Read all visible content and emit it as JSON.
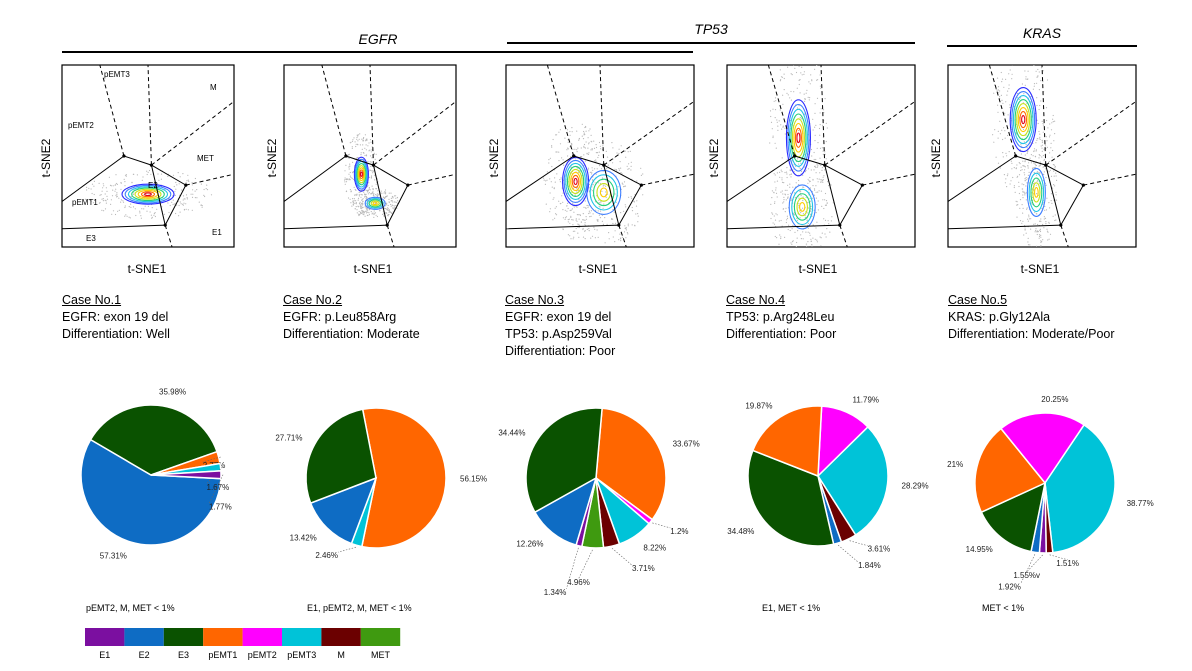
{
  "gene_headers": [
    {
      "label": "EGFR"
    },
    {
      "label": "TP53"
    },
    {
      "label": "KRAS"
    }
  ],
  "tsne_panels": [
    {
      "xlabel": "t-SNE1",
      "ylabel": "t-SNE2",
      "region_labels": [
        "pEMT3",
        "M",
        "pEMT2",
        "MET",
        "E2",
        "pEMT1",
        "E3",
        "E1"
      ]
    },
    {
      "xlabel": "t-SNE1",
      "ylabel": "t-SNE2"
    },
    {
      "xlabel": "t-SNE1",
      "ylabel": "t-SNE2"
    },
    {
      "xlabel": "t-SNE1",
      "ylabel": "t-SNE2"
    },
    {
      "xlabel": "t-SNE1",
      "ylabel": "t-SNE2"
    }
  ],
  "cases": [
    {
      "title": "Case No.1",
      "lines": [
        "EGFR: exon 19 del",
        "Differentiation: Well"
      ]
    },
    {
      "title": "Case No.2",
      "lines": [
        "EGFR: p.Leu858Arg",
        "Differentiation: Moderate"
      ]
    },
    {
      "title": "Case No.3",
      "lines": [
        "EGFR: exon 19 del",
        "TP53: p.Asp259Val",
        "Differentiation: Poor"
      ]
    },
    {
      "title": "Case No.4",
      "lines": [
        "TP53: p.Arg248Leu",
        "Differentiation: Poor"
      ]
    },
    {
      "title": "Case No.5",
      "lines": [
        "KRAS: p.Gly12Ala",
        "Differentiation: Moderate/Poor"
      ]
    }
  ],
  "colors": {
    "E1": "#7b0fa0",
    "E2": "#0e6cc4",
    "E3": "#0a5200",
    "pEMT1": "#ff6600",
    "pEMT2": "#ff00ff",
    "pEMT3": "#00c3d8",
    "M": "#6b0000",
    "MET": "#3f9a10"
  },
  "chart_data": [
    {
      "type": "pie",
      "title": "Case No.1",
      "slices": [
        {
          "category": "E2",
          "value": 57.31,
          "label": "57.31%"
        },
        {
          "category": "E3",
          "value": 35.98,
          "label": "35.98%"
        },
        {
          "category": "pEMT1",
          "value": 2.77,
          "label": "2.77%"
        },
        {
          "category": "pEMT3",
          "value": 1.67,
          "label": "1.67%"
        },
        {
          "category": "E1",
          "value": 1.77,
          "label": "1.77%"
        }
      ],
      "note": "pEMT2, M, MET < 1%"
    },
    {
      "type": "pie",
      "title": "Case No.2",
      "slices": [
        {
          "category": "pEMT1",
          "value": 56.15,
          "label": "56.15%"
        },
        {
          "category": "pEMT3",
          "value": 2.46,
          "label": "2.46%"
        },
        {
          "category": "E2",
          "value": 13.42,
          "label": "13.42%"
        },
        {
          "category": "E3",
          "value": 27.71,
          "label": "27.71%"
        }
      ],
      "note": "E1, pEMT2, M, MET < 1%"
    },
    {
      "type": "pie",
      "title": "Case No.3",
      "slices": [
        {
          "category": "pEMT1",
          "value": 33.67,
          "label": "33.67%"
        },
        {
          "category": "pEMT2",
          "value": 1.2,
          "label": "1.2%"
        },
        {
          "category": "pEMT3",
          "value": 8.22,
          "label": "8.22%"
        },
        {
          "category": "M",
          "value": 3.71,
          "label": "3.71%"
        },
        {
          "category": "MET",
          "value": 4.96,
          "label": "4.96%"
        },
        {
          "category": "E1",
          "value": 1.34,
          "label": "1.34%"
        },
        {
          "category": "E2",
          "value": 12.26,
          "label": "12.26%"
        },
        {
          "category": "E3",
          "value": 34.44,
          "label": "34.44%"
        }
      ],
      "note": ""
    },
    {
      "type": "pie",
      "title": "Case No.4",
      "slices": [
        {
          "category": "pEMT2",
          "value": 11.79,
          "label": "11.79%"
        },
        {
          "category": "pEMT3",
          "value": 28.29,
          "label": "28.29%"
        },
        {
          "category": "M",
          "value": 3.61,
          "label": "3.61%"
        },
        {
          "category": "E2",
          "value": 1.84,
          "label": "1.84%"
        },
        {
          "category": "E3",
          "value": 34.48,
          "label": "34.48%"
        },
        {
          "category": "pEMT1",
          "value": 19.87,
          "label": "19.87%"
        }
      ],
      "note": "E1, MET < 1%"
    },
    {
      "type": "pie",
      "title": "Case No.5",
      "slices": [
        {
          "category": "pEMT2",
          "value": 20.25,
          "label": "20.25%"
        },
        {
          "category": "pEMT3",
          "value": 38.77,
          "label": "38.77%"
        },
        {
          "category": "M",
          "value": 1.51,
          "label": "1.51%"
        },
        {
          "category": "E1",
          "value": 1.55,
          "label": "1.55%v"
        },
        {
          "category": "E2",
          "value": 1.92,
          "label": "1.92%"
        },
        {
          "category": "E3",
          "value": 14.95,
          "label": "14.95%"
        },
        {
          "category": "pEMT1",
          "value": 21.0,
          "label": "21%"
        }
      ],
      "note": "MET < 1%"
    }
  ],
  "legend": {
    "items": [
      "E1",
      "E2",
      "E3",
      "pEMT1",
      "pEMT2",
      "pEMT3",
      "M",
      "MET"
    ]
  }
}
